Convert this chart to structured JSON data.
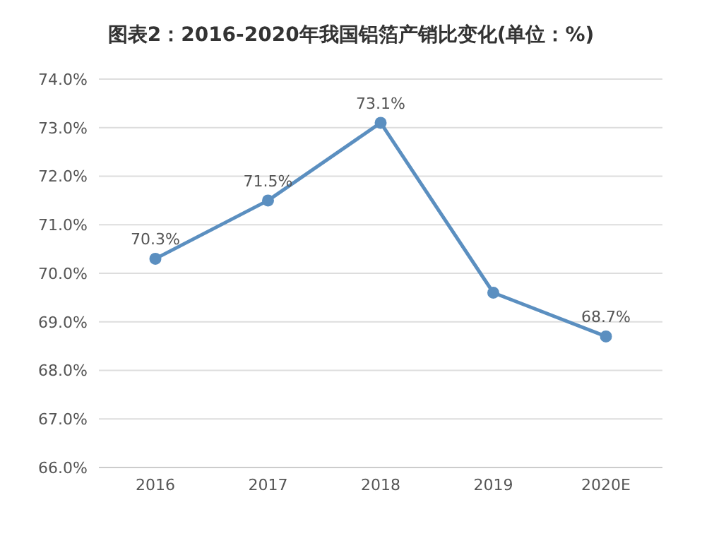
{
  "chart_data": {
    "type": "line",
    "title": "图表2：2016-2020年我国铝箔产销比变化(单位：%)",
    "categories": [
      "2016",
      "2017",
      "2018",
      "2019",
      "2020E"
    ],
    "series": [
      {
        "color": "#5b8fc0",
        "values": [
          70.3,
          71.5,
          73.1,
          69.6,
          68.7
        ],
        "value_labels": [
          "70.3%",
          "71.5%",
          "73.1%",
          null,
          "68.7%"
        ]
      }
    ],
    "ylim": [
      66,
      74
    ],
    "yticks": [
      {
        "value": 66,
        "label": "66.0%"
      },
      {
        "value": 67,
        "label": "67.0%"
      },
      {
        "value": 68,
        "label": "68.0%"
      },
      {
        "value": 69,
        "label": "69.0%"
      },
      {
        "value": 70,
        "label": "70.0%"
      },
      {
        "value": 71,
        "label": "71.0%"
      },
      {
        "value": 72,
        "label": "72.0%"
      },
      {
        "value": 73,
        "label": "73.0%"
      },
      {
        "value": 74,
        "label": "74.0%"
      }
    ],
    "grid": "y",
    "marker": "circle",
    "line_style": "solid",
    "legend": false
  }
}
